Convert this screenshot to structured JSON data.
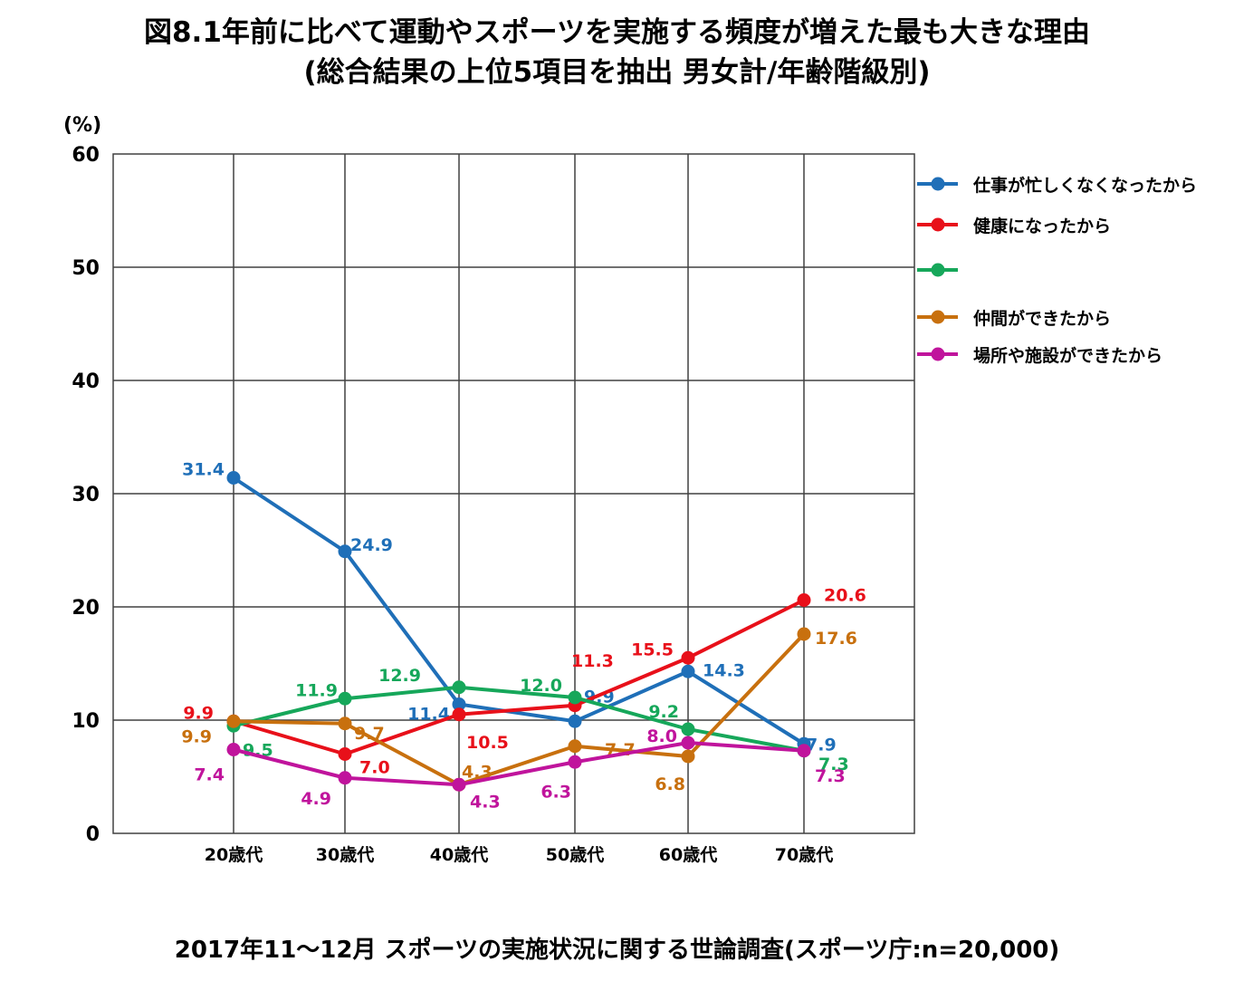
{
  "title_line1": "図8.1年前に比べて運動やスポーツを実施する頻度が増えた最も大きな理由",
  "title_line2": "(総合結果の上位5項目を抽出 男女計/年齢階級別)",
  "footer": "2017年11～12月 スポーツの実施状況に関する世論調査(スポーツ庁:n=20,000)",
  "chart_data": {
    "type": "line",
    "yunit": "(%)",
    "ylim": [
      0,
      60
    ],
    "yticks": [
      0,
      10,
      20,
      30,
      40,
      50,
      60
    ],
    "grid": true,
    "legend_position": "right",
    "categories": [
      "20歳代",
      "30歳代",
      "40歳代",
      "50歳代",
      "60歳代",
      "70歳代"
    ],
    "series": [
      {
        "name": "仕事が忙しくなくなったから",
        "color": "#1f6fb8",
        "values": [
          31.4,
          24.9,
          11.4,
          9.9,
          14.3,
          7.9
        ]
      },
      {
        "name": "健康になったから",
        "color": "#e8101a",
        "values": [
          9.9,
          7.0,
          10.5,
          11.3,
          15.5,
          20.6
        ]
      },
      {
        "name": "",
        "color": "#16a75a",
        "values": [
          9.5,
          11.9,
          12.9,
          12.0,
          9.2,
          7.3
        ]
      },
      {
        "name": "仲間ができたから",
        "color": "#c8700e",
        "values": [
          9.9,
          9.7,
          4.3,
          7.7,
          6.8,
          17.6
        ]
      },
      {
        "name": "場所や施設ができたから",
        "color": "#c0149c",
        "values": [
          7.4,
          4.9,
          4.3,
          6.3,
          8.0,
          7.3
        ]
      }
    ]
  }
}
